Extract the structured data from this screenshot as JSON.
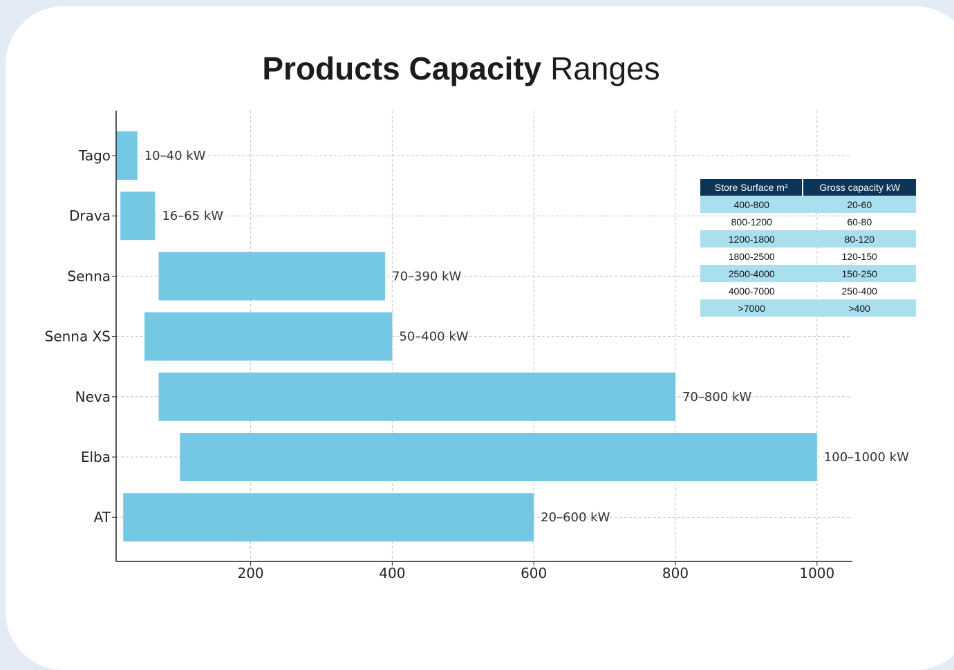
{
  "title_bold": "Products Capacity",
  "title_rest": "Ranges",
  "chart_data": {
    "type": "bar",
    "orientation": "horizontal",
    "categories": [
      "Tago",
      "Drava",
      "Senna",
      "Senna XS",
      "Neva",
      "Elba",
      "AT"
    ],
    "series": [
      {
        "ranges": [
          [
            10,
            40
          ],
          [
            16,
            65
          ],
          [
            70,
            390
          ],
          [
            50,
            400
          ],
          [
            70,
            800
          ],
          [
            100,
            1000
          ],
          [
            20,
            600
          ]
        ],
        "labels": [
          "10–40 kW",
          "16–65 kW",
          "70–390 kW",
          "50–400 kW",
          "70–800 kW",
          "100–1000 kW",
          "20–600 kW"
        ]
      }
    ],
    "xlim": [
      10,
      1050
    ],
    "xticks": [
      200,
      400,
      600,
      800,
      1000
    ],
    "xlabel": "",
    "ylabel": "",
    "grid": true,
    "bar_color": "#74c8e4"
  },
  "capacity_table": {
    "headers": [
      "Store Surface m²",
      "Gross capacity kW"
    ],
    "rows": [
      [
        "400-800",
        "20-60"
      ],
      [
        "800-1200",
        "60-80"
      ],
      [
        "1200-1800",
        "80-120"
      ],
      [
        "1800-2500",
        "120-150"
      ],
      [
        "2500-4000",
        "150-250"
      ],
      [
        "4000-7000",
        "250-400"
      ],
      [
        ">7000",
        ">400"
      ]
    ],
    "header_color": "#0e3558",
    "stripe_color": "#aadfee"
  }
}
